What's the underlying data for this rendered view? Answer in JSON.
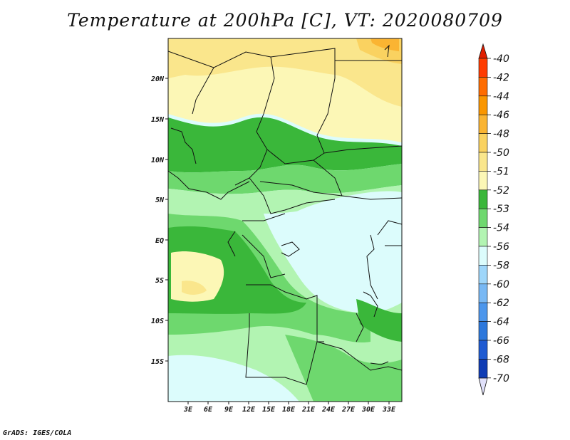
{
  "title": "Temperature at 200hPa [C], VT: 2020080709",
  "footer": "GrADS: IGES/COLA",
  "map": {
    "lat_ticks": [
      "20N",
      "15N",
      "10N",
      "5N",
      "EQ",
      "5S",
      "10S",
      "15S"
    ],
    "lon_ticks": [
      "3E",
      "6E",
      "9E",
      "12E",
      "15E",
      "18E",
      "21E",
      "24E",
      "27E",
      "30E",
      "33E"
    ]
  },
  "colorbar": {
    "levels": [
      {
        "label": "-40",
        "color": "#ff3c00"
      },
      {
        "label": "-42",
        "color": "#ff6c00"
      },
      {
        "label": "-44",
        "color": "#fa9600"
      },
      {
        "label": "-46",
        "color": "#fab432"
      },
      {
        "label": "-48",
        "color": "#fad260"
      },
      {
        "label": "-50",
        "color": "#fae68c"
      },
      {
        "label": "-51",
        "color": "#fcf7b6"
      },
      {
        "label": "-52",
        "color": "#3ab73a"
      },
      {
        "label": "-53",
        "color": "#6ed86e"
      },
      {
        "label": "-54",
        "color": "#b2f4b2"
      },
      {
        "label": "-56",
        "color": "#dcfcfc"
      },
      {
        "label": "-58",
        "color": "#9ed6fa"
      },
      {
        "label": "-60",
        "color": "#78b8f4"
      },
      {
        "label": "-62",
        "color": "#4c96ec"
      },
      {
        "label": "-64",
        "color": "#2d78dc"
      },
      {
        "label": "-66",
        "color": "#1e5ad2"
      },
      {
        "label": "-68",
        "color": "#0f3cb4"
      },
      {
        "label": "-70",
        "color": "#0a1478"
      }
    ],
    "top_arrow_color": "#e01e00",
    "bottom_arrow_color": "#e0e0fa"
  }
}
